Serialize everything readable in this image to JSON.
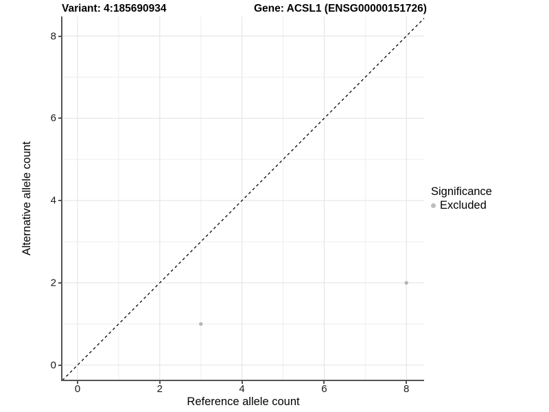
{
  "chart_data": {
    "type": "scatter",
    "titles": {
      "left": "Variant: 4:185690934",
      "right": "Gene: ACSL1 (ENSG00000151726)"
    },
    "xlabel": "Reference allele count",
    "ylabel": "Alternative allele count",
    "xlim": [
      -0.37,
      8.45
    ],
    "ylim": [
      -0.37,
      8.45
    ],
    "x_ticks": [
      0,
      2,
      4,
      6,
      8
    ],
    "y_ticks": [
      0,
      2,
      4,
      6,
      8
    ],
    "x_minor_ticks": [
      1,
      3,
      5,
      7
    ],
    "y_minor_ticks": [
      1,
      3,
      5,
      7
    ],
    "grid": "major+minor",
    "legend": {
      "title": "Significance",
      "position": "right",
      "items": [
        {
          "label": "Excluded",
          "color": "#bebebe"
        }
      ]
    },
    "series": [
      {
        "name": "Excluded",
        "color": "#b5b5b5",
        "points": [
          [
            3,
            1
          ],
          [
            8,
            2
          ]
        ]
      }
    ],
    "reference_line": {
      "type": "identity",
      "slope": 1,
      "intercept": 0,
      "style": "dashed",
      "color": "#000000"
    },
    "style": {
      "background": "#ffffff",
      "axis_line": "#545454",
      "grid_major": "#e2e2e2",
      "grid_minor": "#eeeeee",
      "text": "#000000"
    }
  }
}
